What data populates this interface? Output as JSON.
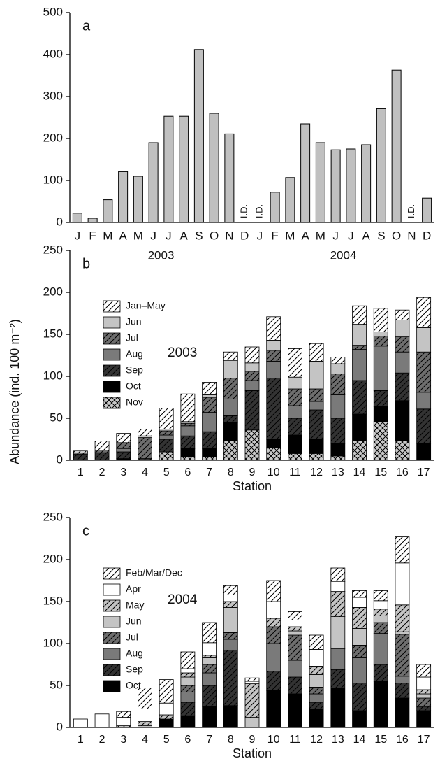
{
  "y_label": "Abundance (ind. 100 m⁻²)",
  "chart_data": [
    {
      "type": "bar",
      "panel": "a",
      "categories": [
        "J",
        "F",
        "M",
        "A",
        "M",
        "J",
        "J",
        "A",
        "S",
        "O",
        "N",
        "D",
        "J",
        "F",
        "M",
        "A",
        "M",
        "J",
        "J",
        "A",
        "S",
        "O",
        "N",
        "D"
      ],
      "year_labels": [
        "2003",
        "2004"
      ],
      "values": [
        22,
        10,
        54,
        121,
        110,
        190,
        253,
        253,
        412,
        260,
        211,
        null,
        null,
        72,
        107,
        235,
        190,
        173,
        175,
        185,
        271,
        363,
        null,
        58
      ],
      "value_labels": [
        null,
        null,
        null,
        null,
        null,
        null,
        null,
        null,
        null,
        null,
        null,
        "I.D.",
        "I.D.",
        null,
        null,
        null,
        null,
        null,
        null,
        null,
        null,
        null,
        "I.D.",
        null
      ],
      "color": "#c0c0c0",
      "ylim": [
        0,
        500
      ],
      "yticks": [
        0,
        100,
        200,
        300,
        400,
        500
      ]
    },
    {
      "type": "stacked_bar",
      "panel": "b",
      "annotation": "2003",
      "x_label": "Station",
      "categories": [
        "1",
        "2",
        "3",
        "4",
        "5",
        "6",
        "7",
        "8",
        "9",
        "10",
        "11",
        "12",
        "13",
        "14",
        "15",
        "16",
        "17"
      ],
      "legend": "upper left",
      "series": [
        {
          "name": "Jan–May",
          "color": "#ffffff",
          "pattern": "hatch",
          "values": [
            2,
            11,
            11,
            8,
            25,
            33,
            15,
            10,
            19,
            28,
            34,
            21,
            8,
            22,
            28,
            12,
            36
          ]
        },
        {
          "name": "Jun",
          "color": "#c4c4c4",
          "pattern": "none",
          "values": [
            0,
            0,
            0,
            2,
            2,
            2,
            3,
            21,
            10,
            12,
            14,
            33,
            12,
            25,
            5,
            20,
            29
          ]
        },
        {
          "name": "Jul",
          "color": "#6e6e6e",
          "pattern": "hatch",
          "values": [
            2,
            3,
            7,
            25,
            5,
            3,
            18,
            25,
            11,
            13,
            20,
            15,
            25,
            5,
            12,
            18,
            48
          ]
        },
        {
          "name": "Aug",
          "color": "#7a7a7a",
          "pattern": "none",
          "values": [
            0,
            0,
            4,
            0,
            5,
            12,
            23,
            20,
            12,
            20,
            15,
            10,
            28,
            37,
            53,
            25,
            20
          ]
        },
        {
          "name": "Sep",
          "color": "#333333",
          "pattern": "hatch",
          "values": [
            7,
            9,
            8,
            2,
            15,
            15,
            20,
            8,
            47,
            73,
            20,
            35,
            30,
            40,
            19,
            33,
            41
          ]
        },
        {
          "name": "Oct",
          "color": "#000000",
          "pattern": "none",
          "values": [
            0,
            0,
            2,
            0,
            0,
            10,
            10,
            22,
            0,
            10,
            22,
            17,
            15,
            32,
            18,
            48,
            20
          ]
        },
        {
          "name": "Nov",
          "color": "#c8c8c8",
          "pattern": "crosshatch",
          "values": [
            0,
            0,
            0,
            0,
            10,
            4,
            4,
            23,
            36,
            15,
            8,
            8,
            5,
            23,
            46,
            23,
            0
          ]
        }
      ],
      "ylim": [
        0,
        250
      ],
      "yticks": [
        0,
        50,
        100,
        150,
        200,
        250
      ]
    },
    {
      "type": "stacked_bar",
      "panel": "c",
      "annotation": "2004",
      "x_label": "Station",
      "categories": [
        "1",
        "2",
        "3",
        "4",
        "5",
        "6",
        "7",
        "8",
        "9",
        "10",
        "11",
        "12",
        "13",
        "14",
        "15",
        "16",
        "17"
      ],
      "legend": "upper left",
      "series": [
        {
          "name": "Feb/Mar/Dec",
          "color": "#ffffff",
          "pattern": "hatch",
          "values": [
            0,
            0,
            7,
            25,
            28,
            20,
            24,
            11,
            4,
            25,
            10,
            17,
            16,
            8,
            12,
            31,
            15
          ]
        },
        {
          "name": "Apr",
          "color": "#ffffff",
          "pattern": "none",
          "values": [
            10,
            16,
            10,
            15,
            14,
            5,
            15,
            8,
            3,
            20,
            8,
            20,
            12,
            12,
            10,
            50,
            15
          ]
        },
        {
          "name": "May",
          "color": "#c4c4c4",
          "pattern": "hatch",
          "values": [
            0,
            0,
            2,
            5,
            5,
            5,
            3,
            7,
            40,
            10,
            5,
            10,
            30,
            25,
            8,
            32,
            5
          ]
        },
        {
          "name": "Jun",
          "color": "#c4c4c4",
          "pattern": "none",
          "values": [
            0,
            0,
            0,
            2,
            0,
            10,
            8,
            30,
            12,
            0,
            5,
            15,
            38,
            20,
            8,
            3,
            5
          ]
        },
        {
          "name": "Jul",
          "color": "#6e6e6e",
          "pattern": "hatch",
          "values": [
            0,
            0,
            0,
            0,
            0,
            8,
            10,
            8,
            0,
            20,
            30,
            8,
            0,
            15,
            13,
            50,
            10
          ]
        },
        {
          "name": "Aug",
          "color": "#7a7a7a",
          "pattern": "none",
          "values": [
            0,
            0,
            0,
            0,
            0,
            12,
            15,
            13,
            0,
            33,
            20,
            10,
            25,
            30,
            37,
            8,
            0
          ]
        },
        {
          "name": "Sep",
          "color": "#333333",
          "pattern": "hatch",
          "values": [
            0,
            0,
            0,
            0,
            0,
            16,
            25,
            66,
            0,
            23,
            20,
            8,
            22,
            33,
            20,
            18,
            5
          ]
        },
        {
          "name": "Oct",
          "color": "#000000",
          "pattern": "none",
          "values": [
            0,
            0,
            0,
            0,
            10,
            14,
            25,
            26,
            0,
            44,
            40,
            22,
            47,
            20,
            55,
            35,
            20
          ]
        }
      ],
      "ylim": [
        0,
        250
      ],
      "yticks": [
        0,
        50,
        100,
        150,
        200,
        250
      ]
    }
  ]
}
